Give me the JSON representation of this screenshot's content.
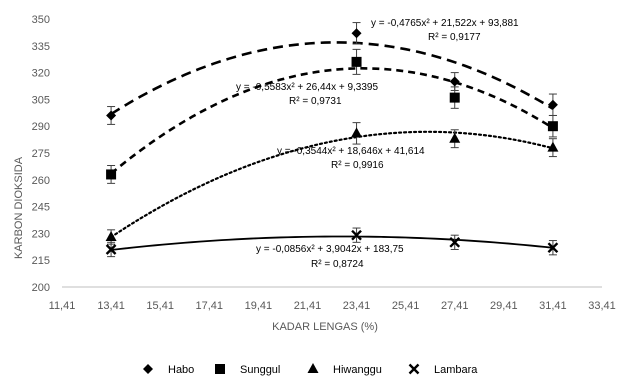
{
  "chart_data": {
    "type": "scatter",
    "xlabel": "KADAR LENGAS (%)",
    "ylabel": "KARBON DIOKSIDA",
    "xlim": [
      11.41,
      33.41
    ],
    "ylim": [
      200,
      350
    ],
    "xticks": [
      11.41,
      13.41,
      15.41,
      17.41,
      19.41,
      21.41,
      23.41,
      25.41,
      27.41,
      29.41,
      31.41,
      33.41
    ],
    "xtick_labels": [
      "11,41",
      "13,41",
      "15,41",
      "17,41",
      "19,41",
      "21,41",
      "23,41",
      "25,41",
      "27,41",
      "29,41",
      "31,41",
      "33,41"
    ],
    "yticks": [
      200,
      215,
      230,
      245,
      260,
      275,
      290,
      305,
      320,
      335,
      350
    ],
    "ytick_labels": [
      "200",
      "215",
      "230",
      "245",
      "260",
      "275",
      "290",
      "305",
      "320",
      "335",
      "350"
    ],
    "legend_position": "bottom",
    "series": [
      {
        "name": "Habo",
        "marker": "diamond",
        "line": "dash-long",
        "color": "#000000",
        "x": [
          13.41,
          23.41,
          27.41,
          31.41
        ],
        "y": [
          296,
          342,
          315,
          302
        ],
        "err": [
          5,
          6,
          5,
          6
        ],
        "trend": {
          "a": -0.4765,
          "b": 21.522,
          "c": 93.881
        },
        "equation": "y = -0,4765x² + 21,522x + 93,881",
        "r2": "R² = 0,9177"
      },
      {
        "name": "Sunggul",
        "marker": "square",
        "line": "dash",
        "color": "#000000",
        "x": [
          13.41,
          23.41,
          27.41,
          31.41
        ],
        "y": [
          263,
          326,
          306,
          290
        ],
        "err": [
          5,
          7,
          6,
          6
        ],
        "trend": {
          "a": -0.5583,
          "b": 26.44,
          "c": 9.3395
        },
        "equation": "y = -0,5583x² + 26,44x + 9,3395",
        "r2": "R² = 0,9731"
      },
      {
        "name": "Hiwanggu",
        "marker": "triangle",
        "line": "dot",
        "color": "#000000",
        "x": [
          13.41,
          23.41,
          27.41,
          31.41
        ],
        "y": [
          228,
          286,
          283,
          278
        ],
        "err": [
          4,
          6,
          5,
          5
        ],
        "trend": {
          "a": -0.3544,
          "b": 18.646,
          "c": 41.614
        },
        "equation": "y = -0,3544x² + 18,646x + 41,614",
        "r2": "R² = 0,9916"
      },
      {
        "name": "Lambara",
        "marker": "x",
        "line": "solid",
        "color": "#000000",
        "x": [
          13.41,
          23.41,
          27.41,
          31.41
        ],
        "y": [
          221,
          229,
          225,
          222
        ],
        "err": [
          4,
          4,
          4,
          4
        ],
        "trend": {
          "a": -0.0856,
          "b": 3.9042,
          "c": 183.75
        },
        "equation": "y = -0,0856x² + 3,9042x + 183,75",
        "r2": "R² = 0,8724"
      }
    ]
  }
}
